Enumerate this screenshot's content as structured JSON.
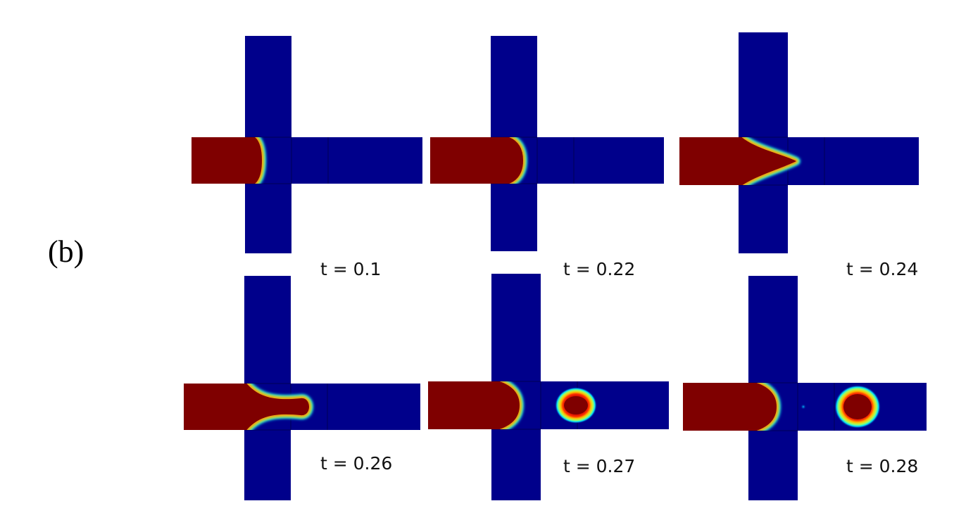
{
  "figure": {
    "panel_label": "(b)",
    "colors": {
      "dispersed_phase": "#7f0000",
      "continuous_phase": "#00008b",
      "interface_colormap": [
        "#00008b",
        "#0000ff",
        "#00bfff",
        "#00ffff",
        "#7fff7f",
        "#ffff00",
        "#ff7f00",
        "#ff0000",
        "#7f0000"
      ]
    },
    "snapshots": [
      {
        "time_label": "t = 0.1",
        "time": 0.1,
        "stage": "thread-entering-junction"
      },
      {
        "time_label": "t = 0.22",
        "time": 0.22,
        "stage": "thread-entering-junction"
      },
      {
        "time_label": "t = 0.24",
        "time": 0.24,
        "stage": "thread-elongating"
      },
      {
        "time_label": "t = 0.26",
        "time": 0.26,
        "stage": "neck-thinning"
      },
      {
        "time_label": "t = 0.27",
        "time": 0.27,
        "stage": "pinch-off"
      },
      {
        "time_label": "t = 0.28",
        "time": 0.28,
        "stage": "droplet-detached"
      }
    ]
  }
}
